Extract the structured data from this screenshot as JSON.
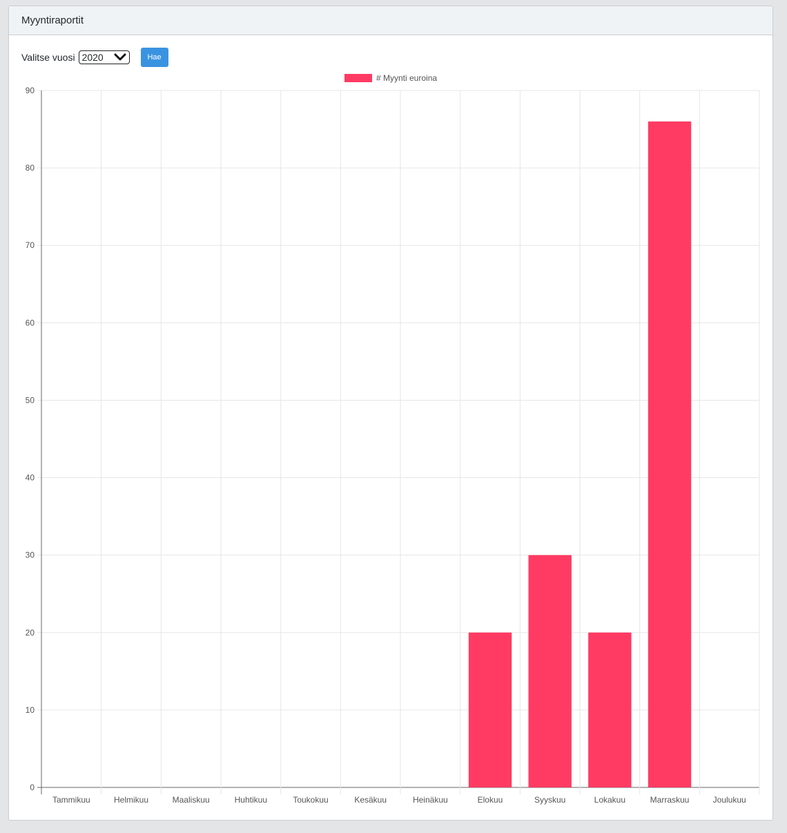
{
  "card": {
    "title": "Myyntiraportit"
  },
  "controls": {
    "year_label": "Valitse vuosi",
    "year_value": "2020",
    "submit_label": "Hae"
  },
  "colors": {
    "bar": "#ff3b63",
    "grid": "#e6e6e6",
    "axis": "#666666",
    "tick_text": "#555555"
  },
  "chart_data": {
    "type": "bar",
    "categories": [
      "Tammikuu",
      "Helmikuu",
      "Maaliskuu",
      "Huhtikuu",
      "Toukokuu",
      "Kesäkuu",
      "Heinäkuu",
      "Elokuu",
      "Syyskuu",
      "Lokakuu",
      "Marraskuu",
      "Joulukuu"
    ],
    "series": [
      {
        "name": "# Myynti euroina",
        "values": [
          0,
          0,
          0,
          0,
          0,
          0,
          0,
          20,
          30,
          20,
          86,
          0
        ]
      }
    ],
    "ylim": [
      0,
      90
    ],
    "yticks": [
      0,
      10,
      20,
      30,
      40,
      50,
      60,
      70,
      80,
      90
    ],
    "grid": true,
    "legend": "top"
  }
}
